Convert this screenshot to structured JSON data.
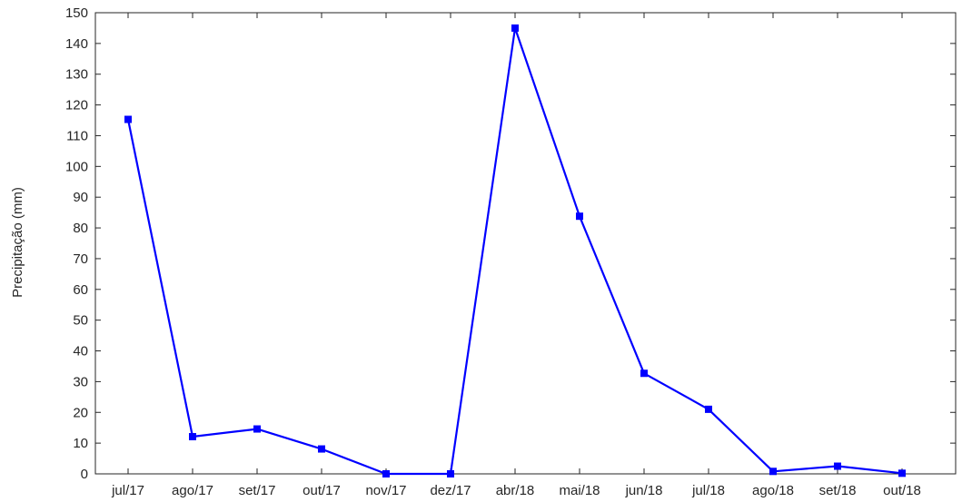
{
  "chart_data": {
    "type": "line",
    "categories": [
      "jul/17",
      "ago/17",
      "set/17",
      "out/17",
      "nov/17",
      "dez/17",
      "abr/18",
      "mai/18",
      "jun/18",
      "jul/18",
      "ago/18",
      "set/18",
      "out/18"
    ],
    "series": [
      {
        "values": [
          115.3,
          12.1,
          14.6,
          8.1,
          0.0,
          0.0,
          145.0,
          83.8,
          32.7,
          21.0,
          0.8,
          2.5,
          0.2
        ],
        "color": "#0000ff",
        "marker": "square"
      }
    ],
    "title": "",
    "xlabel": "",
    "ylabel": "Precipitação (mm)",
    "ylim": [
      0,
      150
    ],
    "yticks": [
      0,
      10,
      20,
      30,
      40,
      50,
      60,
      70,
      80,
      90,
      100,
      110,
      120,
      130,
      140,
      150
    ],
    "grid": false,
    "legend": "none"
  }
}
